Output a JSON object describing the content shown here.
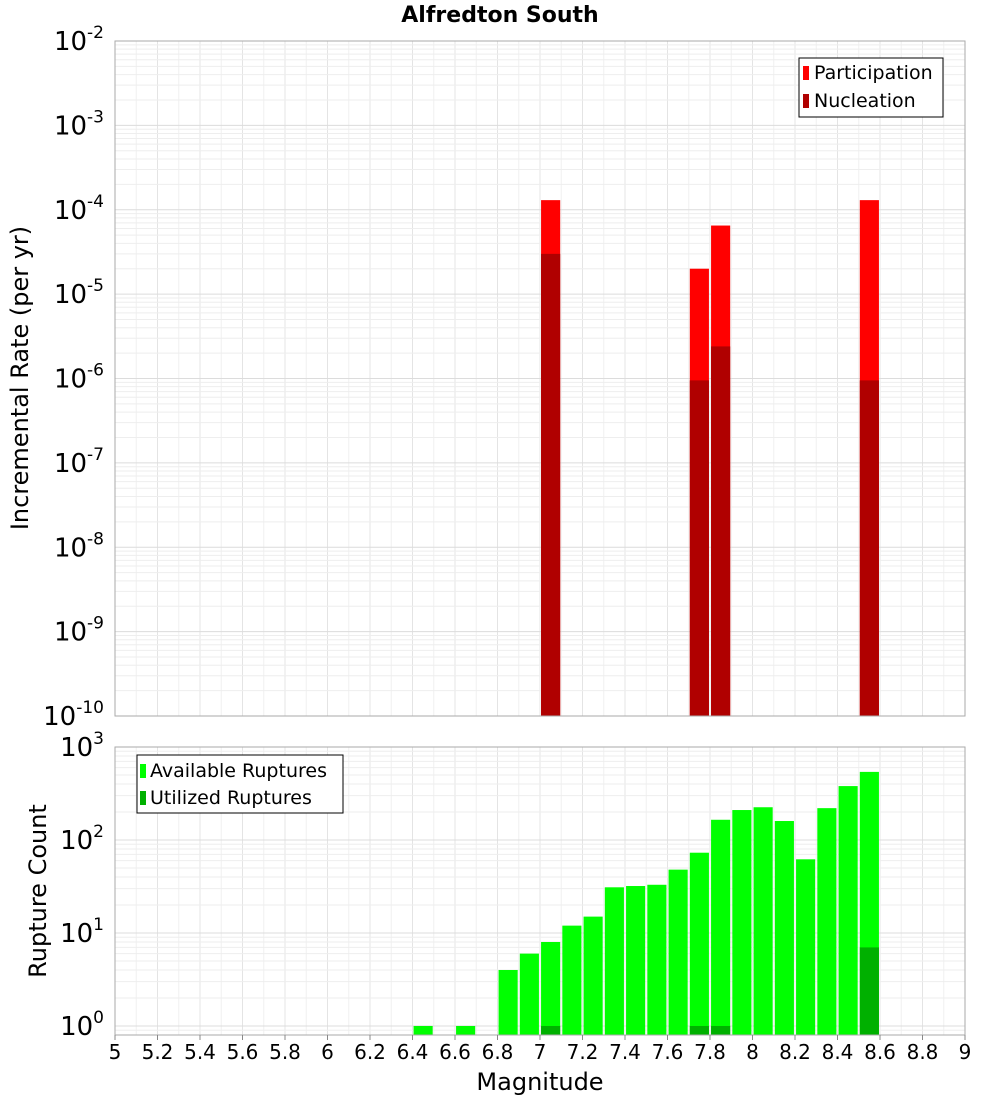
{
  "chart_data": [
    {
      "type": "bar",
      "title": "Alfredton South",
      "ylabel": "Incremental Rate (per yr)",
      "yscale": "log",
      "ylim": [
        1e-10,
        0.01
      ],
      "y_tick_exponents": [
        "-10",
        "-9",
        "-8",
        "-7",
        "-6",
        "-5",
        "-4",
        "-3",
        "-2"
      ],
      "y_tick_base": "10",
      "xlim": [
        5,
        9
      ],
      "grid": true,
      "legend_position": "top-right",
      "series": [
        {
          "name": "Participation",
          "color": "#ff0000",
          "x": [
            7.05,
            7.75,
            7.85,
            8.55
          ],
          "values": [
            0.00013,
            2e-05,
            6.5e-05,
            0.00013
          ]
        },
        {
          "name": "Nucleation",
          "color": "#b00000",
          "x": [
            7.05,
            7.75,
            7.85,
            8.55
          ],
          "values": [
            3e-05,
            9.5e-07,
            2.4e-06,
            9.5e-07
          ]
        }
      ]
    },
    {
      "type": "bar",
      "ylabel": "Rupture Count",
      "xlabel": "Magnitude",
      "yscale": "log",
      "ylim": [
        0.8,
        1000
      ],
      "y_tick_exponents": [
        "0",
        "1",
        "2",
        "3"
      ],
      "y_tick_base": "10",
      "xlim": [
        5,
        9
      ],
      "x_ticks": [
        "5",
        "5.2",
        "5.4",
        "5.6",
        "5.8",
        "6",
        "6.2",
        "6.4",
        "6.6",
        "6.8",
        "7",
        "7.2",
        "7.4",
        "7.6",
        "7.8",
        "8",
        "8.2",
        "8.4",
        "8.6",
        "8.8",
        "9"
      ],
      "grid": true,
      "legend_position": "top-left",
      "series": [
        {
          "name": "Available Ruptures",
          "color": "#00ff00",
          "x": [
            6.45,
            6.65,
            6.85,
            6.95,
            7.05,
            7.15,
            7.25,
            7.35,
            7.45,
            7.55,
            7.65,
            7.75,
            7.85,
            7.95,
            8.05,
            8.15,
            8.25,
            8.35,
            8.45,
            8.55
          ],
          "values": [
            1,
            1,
            4,
            6,
            8,
            12,
            15,
            31,
            32,
            33,
            48,
            73,
            165,
            210,
            225,
            160,
            62,
            220,
            380,
            540
          ]
        },
        {
          "name": "Utilized Ruptures",
          "color": "#00b000",
          "x": [
            7.05,
            7.75,
            7.85,
            8.55
          ],
          "values": [
            1,
            1,
            1,
            7
          ]
        }
      ]
    }
  ]
}
